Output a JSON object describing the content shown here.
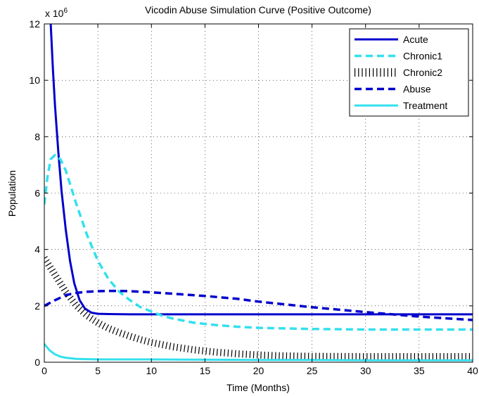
{
  "chart_data": {
    "type": "line",
    "title": "Vicodin Abuse Simulation Curve (Positive Outcome)",
    "xlabel": "Time (Months)",
    "ylabel": "Population",
    "y_multiplier_base": "x 10",
    "y_multiplier_exp": "6",
    "xlim": [
      0,
      40
    ],
    "ylim": [
      0,
      12
    ],
    "xticks": [
      0,
      5,
      10,
      15,
      20,
      25,
      30,
      35,
      40
    ],
    "yticks": [
      0,
      2,
      4,
      6,
      8,
      10,
      12
    ],
    "grid": true,
    "legend_position": "top-right",
    "series": [
      {
        "name": "Acute",
        "color": "#0000cc",
        "style": "solid",
        "x": [
          0.4,
          0.6,
          0.8,
          1.0,
          1.3,
          1.6,
          2.0,
          2.4,
          2.8,
          3.3,
          3.8,
          4.4,
          5,
          6,
          8,
          10,
          15,
          20,
          25,
          30,
          35,
          40
        ],
        "y": [
          15,
          12,
          10.4,
          9.1,
          7.5,
          6.1,
          4.7,
          3.6,
          2.8,
          2.2,
          1.9,
          1.76,
          1.72,
          1.71,
          1.7,
          1.7,
          1.7,
          1.7,
          1.7,
          1.7,
          1.7,
          1.7
        ]
      },
      {
        "name": "Chronic1",
        "color": "#33e0ee",
        "style": "dashed",
        "x": [
          0,
          0.3,
          0.6,
          1.0,
          1.5,
          2,
          2.5,
          3,
          4,
          5,
          6,
          7,
          8,
          9,
          10,
          11,
          12,
          14,
          16,
          18,
          20,
          25,
          30,
          35,
          40
        ],
        "y": [
          5.6,
          6.6,
          7.2,
          7.35,
          7.2,
          6.8,
          6.2,
          5.6,
          4.5,
          3.6,
          2.95,
          2.5,
          2.2,
          1.95,
          1.8,
          1.65,
          1.55,
          1.4,
          1.32,
          1.26,
          1.22,
          1.18,
          1.16,
          1.16,
          1.16
        ]
      },
      {
        "name": "Chronic2",
        "color": "#000000",
        "style": "dotted",
        "x": [
          0,
          1,
          2,
          3,
          4,
          5,
          6,
          7,
          8,
          9,
          10,
          12,
          14,
          16,
          18,
          20,
          22,
          25,
          30,
          35,
          40
        ],
        "y": [
          3.7,
          3.1,
          2.5,
          2.0,
          1.65,
          1.4,
          1.2,
          1.05,
          0.92,
          0.8,
          0.7,
          0.55,
          0.44,
          0.36,
          0.3,
          0.26,
          0.23,
          0.21,
          0.2,
          0.2,
          0.2
        ]
      },
      {
        "name": "Abuse",
        "color": "#0000cc",
        "style": "dashed",
        "x": [
          0,
          1,
          2,
          3,
          4,
          5,
          6,
          7,
          8,
          10,
          12,
          15,
          18,
          20,
          25,
          30,
          35,
          40
        ],
        "y": [
          2.0,
          2.2,
          2.38,
          2.46,
          2.5,
          2.52,
          2.53,
          2.53,
          2.52,
          2.48,
          2.43,
          2.35,
          2.25,
          2.15,
          1.95,
          1.78,
          1.62,
          1.5
        ]
      },
      {
        "name": "Treatment",
        "color": "#33e0ee",
        "style": "solid",
        "x": [
          0,
          0.5,
          1,
          1.5,
          2,
          3,
          4,
          5,
          10,
          15,
          20,
          25,
          30,
          35,
          40
        ],
        "y": [
          0.65,
          0.42,
          0.28,
          0.2,
          0.16,
          0.12,
          0.11,
          0.1,
          0.1,
          0.09,
          0.08,
          0.08,
          0.07,
          0.07,
          0.07
        ]
      }
    ]
  }
}
